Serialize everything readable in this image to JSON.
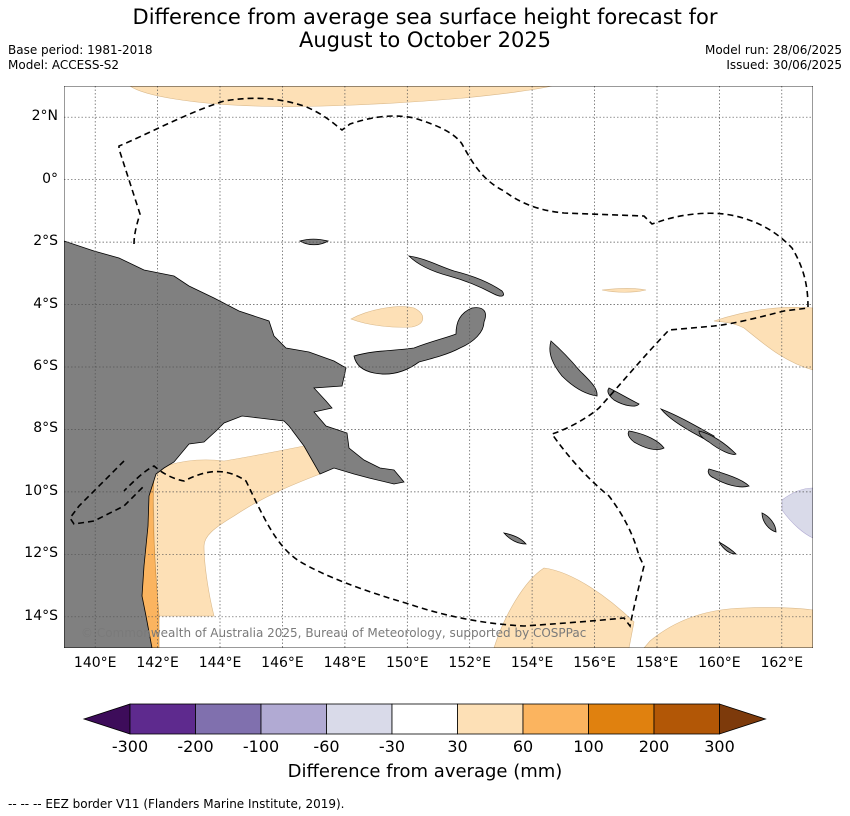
{
  "title_line1": "Difference from average sea surface height forecast for",
  "title_line2": "August to October 2025",
  "base_period": "Base period: 1981-2018",
  "model": "Model: ACCESS-S2",
  "model_run": "Model run: 28/06/2025",
  "issued": "Issued: 30/06/2025",
  "copyright": "© Commonwealth of Australia 2025, Bureau of Meteorology, supported by COSPPac",
  "footnote": "--  --  -- EEZ border V11 (Flanders Marine Institute, 2019).",
  "map": {
    "lon_range": [
      139,
      163
    ],
    "lat_range": [
      -15,
      3
    ],
    "lat_labels": [
      "2°N",
      "0°",
      "2°S",
      "4°S",
      "6°S",
      "8°S",
      "10°S",
      "12°S",
      "14°S"
    ],
    "lon_labels": [
      "140°E",
      "142°E",
      "144°E",
      "146°E",
      "148°E",
      "150°E",
      "152°E",
      "154°E",
      "156°E",
      "158°E",
      "160°E",
      "162°E"
    ],
    "land_color": "#808080",
    "gridlines": true
  },
  "colorbar": {
    "label": "Difference from average (mm)",
    "ticks": [
      "-300",
      "-200",
      "-100",
      "-60",
      "-30",
      "30",
      "60",
      "100",
      "200",
      "300"
    ],
    "colors": [
      "#3d0c5a",
      "#5e2a8e",
      "#8070ae",
      "#b1aad3",
      "#d9dae9",
      "#ffffff",
      "#fde0b6",
      "#fbb45f",
      "#e0810f",
      "#b25706",
      "#7d3a0b"
    ]
  }
}
